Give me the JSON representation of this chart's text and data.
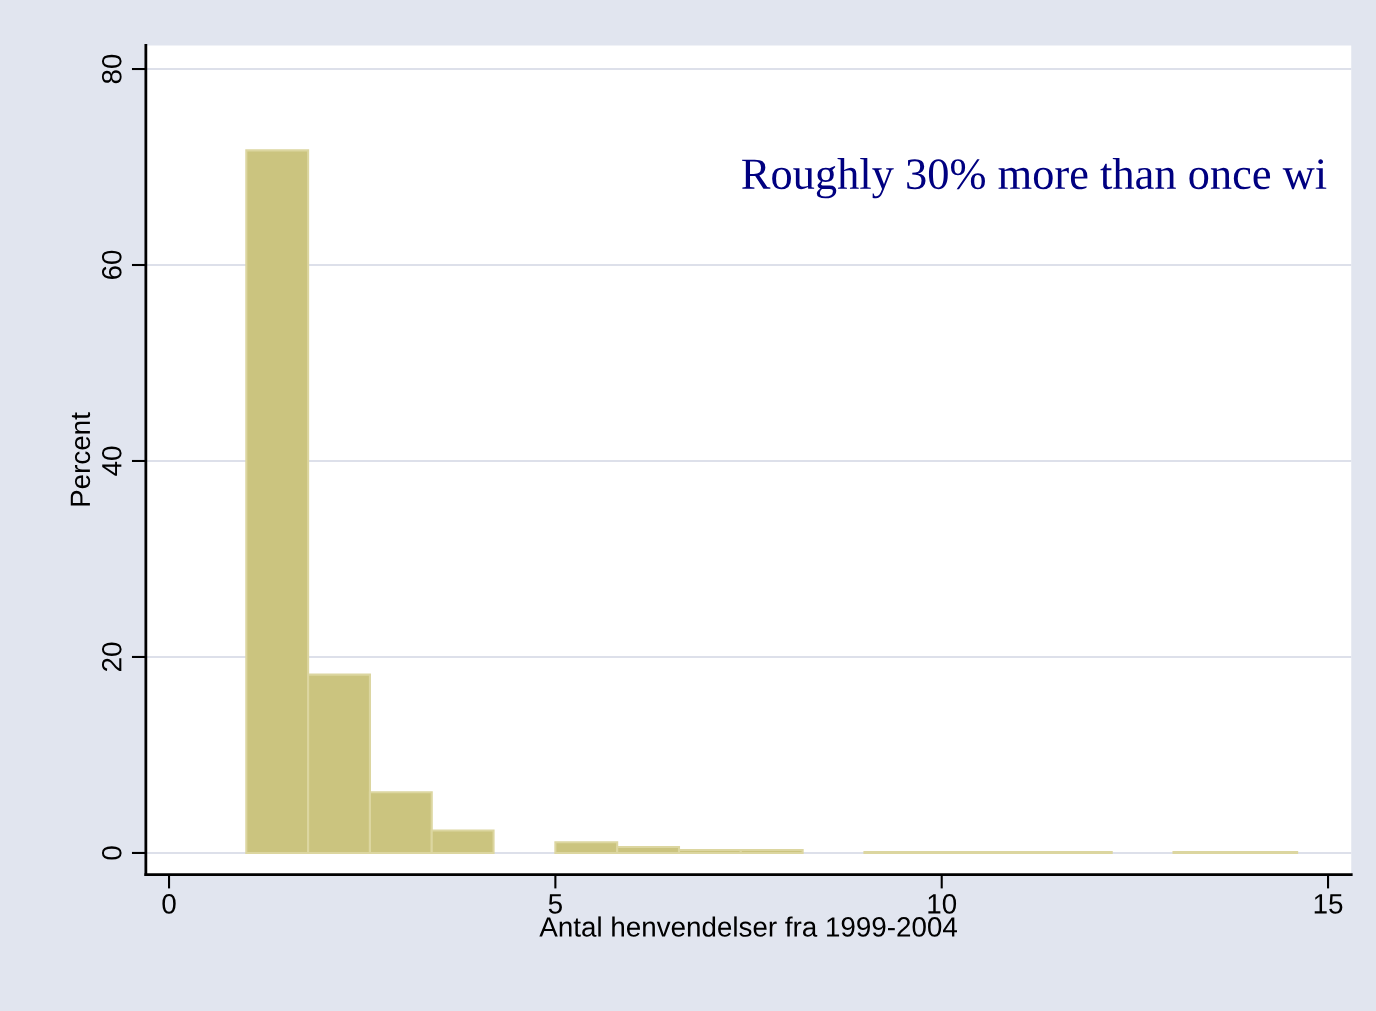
{
  "chart_data": {
    "type": "histogram",
    "xlabel": "Antal henvendelser fra 1999-2004",
    "ylabel": "Percent",
    "bins": [
      1,
      1.8,
      2.6,
      3.4,
      4.2,
      5.0,
      5.8,
      6.6,
      7.4,
      8.2,
      9.0,
      9.8,
      10.6,
      11.4,
      12.2,
      13.0,
      13.8,
      14.6
    ],
    "values": [
      71.7,
      18.2,
      6.2,
      2.3,
      0,
      1.1,
      0.6,
      0.3,
      0.3,
      0,
      0.1,
      0.1,
      0.1,
      0.1,
      0,
      0.1,
      0.1
    ],
    "color": "#cbc47f",
    "xlim": [
      -0.3,
      15.3
    ],
    "xticks": [
      0,
      5,
      10,
      15
    ],
    "ylim": [
      -2.2,
      82.4
    ],
    "yticks": [
      0,
      20,
      40,
      60,
      80
    ],
    "grid": "y",
    "annotations": [
      "Roughly 30% more than once wi"
    ]
  }
}
